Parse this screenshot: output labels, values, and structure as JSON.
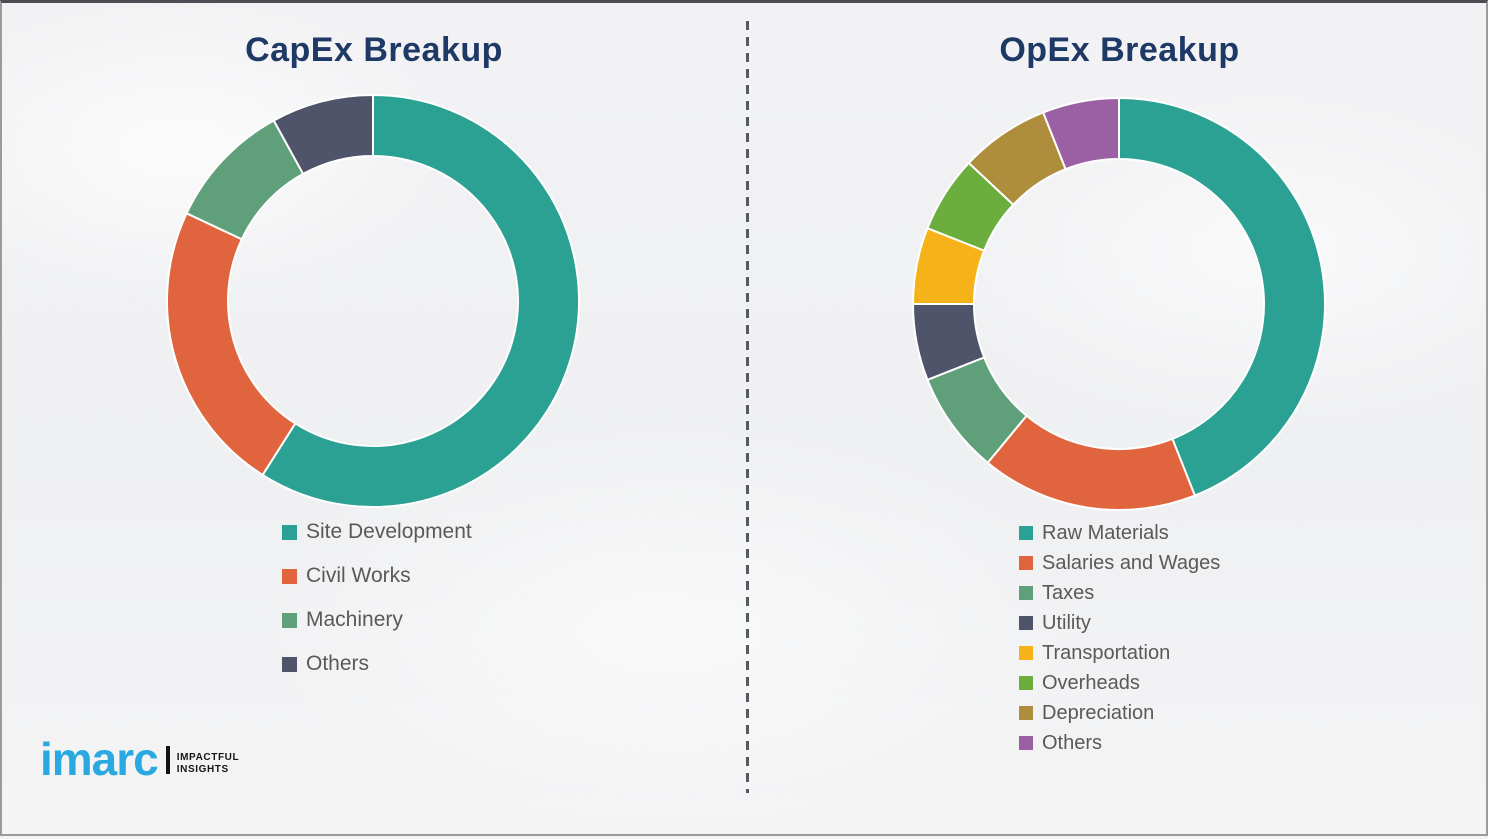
{
  "chart_data": [
    {
      "type": "pie",
      "variant": "donut",
      "title": "CapEx Breakup",
      "categories": [
        "Site Development",
        "Civil Works",
        "Machinery",
        "Others"
      ],
      "values": [
        59,
        23,
        10,
        8
      ],
      "colors": [
        "#2BA193",
        "#E0643D",
        "#5FA07A",
        "#4F546A"
      ],
      "start_angle_deg": 0,
      "direction": "clockwise",
      "legend_position": "below-left",
      "data_labels": "none"
    },
    {
      "type": "pie",
      "variant": "donut",
      "title": "OpEx Breakup",
      "categories": [
        "Raw Materials",
        "Salaries and Wages",
        "Taxes",
        "Utility",
        "Transportation",
        "Overheads",
        "Depreciation",
        "Others"
      ],
      "values": [
        44,
        17,
        8,
        6,
        6,
        6,
        7,
        6
      ],
      "colors": [
        "#2BA193",
        "#E0643D",
        "#5FA07A",
        "#4F546A",
        "#F6B219",
        "#6BAE3E",
        "#AE8D3D",
        "#9B60A4"
      ],
      "start_angle_deg": 0,
      "direction": "clockwise",
      "legend_position": "below-left",
      "data_labels": "none"
    }
  ],
  "branding": {
    "logo_text": "imarc",
    "tagline_line1": "IMPACTFUL",
    "tagline_line2": "INSIGHTS",
    "logo_color": "#29A9E0"
  },
  "theme": {
    "title_color": "#1F3966",
    "legend_text_color": "#595959",
    "background_color": "#F1F1F3",
    "segment_gap_color": "#FFFFFF"
  }
}
